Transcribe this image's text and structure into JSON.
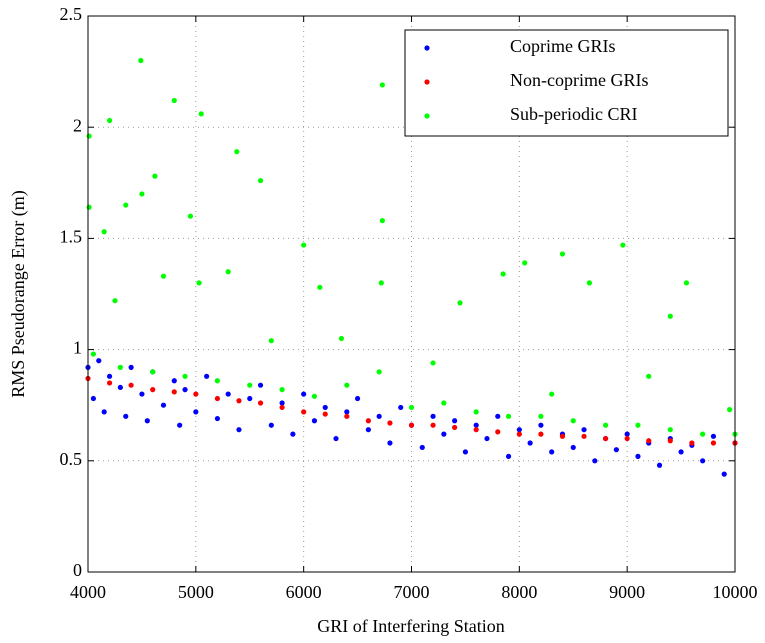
{
  "chart_data": {
    "type": "scatter",
    "xlabel": "GRI of Interfering Station",
    "ylabel": "RMS Pseudorange Error (m)",
    "xlim": [
      4000,
      10000
    ],
    "xticks": [
      4000,
      5000,
      6000,
      7000,
      8000,
      9000,
      10000
    ],
    "ylim": [
      0,
      2.5
    ],
    "yticks": [
      0,
      0.5,
      1,
      1.5,
      2,
      2.5
    ],
    "grid": true,
    "legend": "upper right",
    "series": [
      {
        "name": "Coprime GRIs",
        "color": "#0000ff",
        "x": [
          4000,
          4050,
          4100,
          4150,
          4200,
          4300,
          4350,
          4400,
          4500,
          4550,
          4600,
          4700,
          4800,
          4850,
          4900,
          5000,
          5100,
          5200,
          5300,
          5400,
          5500,
          5600,
          5700,
          5800,
          5900,
          6000,
          6100,
          6200,
          6300,
          6400,
          6500,
          6600,
          6700,
          6800,
          6900,
          7000,
          7100,
          7200,
          7300,
          7400,
          7500,
          7600,
          7700,
          7800,
          7900,
          8000,
          8100,
          8200,
          8300,
          8400,
          8500,
          8600,
          8700,
          8800,
          8900,
          9000,
          9100,
          9200,
          9300,
          9400,
          9500,
          9600,
          9700,
          9800,
          9900,
          10000
        ],
        "values": [
          0.92,
          0.78,
          0.95,
          0.72,
          0.88,
          0.83,
          0.7,
          0.92,
          0.8,
          0.68,
          0.9,
          0.75,
          0.86,
          0.66,
          0.82,
          0.72,
          0.88,
          0.69,
          0.8,
          0.64,
          0.78,
          0.84,
          0.66,
          0.76,
          0.62,
          0.8,
          0.68,
          0.74,
          0.6,
          0.72,
          0.78,
          0.64,
          0.7,
          0.58,
          0.74,
          0.66,
          0.56,
          0.7,
          0.62,
          0.68,
          0.54,
          0.66,
          0.6,
          0.7,
          0.52,
          0.64,
          0.58,
          0.66,
          0.54,
          0.62,
          0.56,
          0.64,
          0.5,
          0.6,
          0.55,
          0.62,
          0.52,
          0.58,
          0.48,
          0.6,
          0.54,
          0.57,
          0.5,
          0.61,
          0.44,
          0.58
        ]
      },
      {
        "name": "Non-coprime GRIs",
        "color": "#ff0000",
        "x": [
          4000,
          4200,
          4400,
          4600,
          4800,
          5000,
          5200,
          5400,
          5600,
          5800,
          6000,
          6200,
          6400,
          6600,
          6800,
          7000,
          7200,
          7400,
          7600,
          7800,
          8000,
          8200,
          8400,
          8600,
          8800,
          9000,
          9200,
          9400,
          9600,
          9800,
          10000
        ],
        "values": [
          0.87,
          0.85,
          0.84,
          0.82,
          0.81,
          0.8,
          0.78,
          0.77,
          0.76,
          0.74,
          0.72,
          0.71,
          0.7,
          0.68,
          0.67,
          0.66,
          0.66,
          0.65,
          0.64,
          0.63,
          0.62,
          0.62,
          0.61,
          0.61,
          0.6,
          0.6,
          0.59,
          0.59,
          0.58,
          0.58,
          0.58
        ]
      },
      {
        "name": "Sub-periodic CRI",
        "color": "#00ff00",
        "x": [
          4010,
          4010,
          4200,
          4490,
          4800,
          5050,
          4350,
          4620,
          4500,
          5380,
          5600,
          4950,
          6730,
          6730,
          6000,
          6720,
          8960,
          8400,
          8050,
          9400,
          9550,
          4150,
          5300,
          5030,
          4700,
          4250,
          6150,
          7850,
          8650,
          7450,
          9950,
          4050,
          4300,
          4600,
          4900,
          5200,
          5500,
          5800,
          6100,
          6400,
          6700,
          7000,
          7300,
          7600,
          7900,
          8200,
          8500,
          8800,
          9100,
          9400,
          9700,
          10000,
          5700,
          6350,
          7200,
          8300,
          9200
        ],
        "values": [
          1.96,
          1.64,
          2.03,
          2.3,
          2.12,
          2.06,
          1.65,
          1.78,
          1.7,
          1.89,
          1.76,
          1.6,
          2.19,
          1.58,
          1.47,
          1.3,
          1.47,
          1.43,
          1.39,
          1.15,
          1.3,
          1.53,
          1.35,
          1.3,
          1.33,
          1.22,
          1.28,
          1.34,
          1.3,
          1.21,
          0.73,
          0.98,
          0.92,
          0.9,
          0.88,
          0.86,
          0.84,
          0.82,
          0.79,
          0.84,
          0.9,
          0.74,
          0.76,
          0.72,
          0.7,
          0.7,
          0.68,
          0.66,
          0.66,
          0.64,
          0.62,
          0.62,
          1.04,
          1.05,
          0.94,
          0.8,
          0.88
        ]
      }
    ]
  }
}
